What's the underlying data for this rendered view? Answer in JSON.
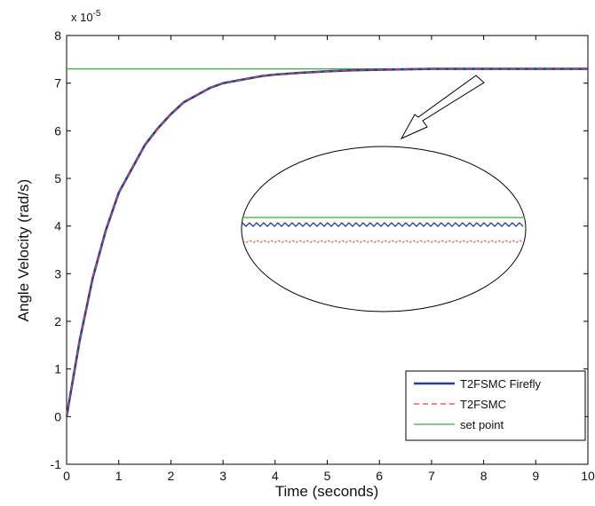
{
  "chart_data": {
    "type": "line",
    "xlabel": "Time (seconds)",
    "ylabel": "Angle Velocity (rad/s)",
    "y_multiplier": "x 10",
    "y_exponent": "-5",
    "xlim": [
      0,
      10
    ],
    "ylim": [
      -1,
      8
    ],
    "x_ticks": [
      "0",
      "1",
      "2",
      "3",
      "4",
      "5",
      "6",
      "7",
      "8",
      "9",
      "10"
    ],
    "y_ticks": [
      "-1",
      "0",
      "1",
      "2",
      "3",
      "4",
      "5",
      "6",
      "7",
      "8"
    ],
    "legend_position": "bottom-right",
    "series": [
      {
        "name": "T2FSMC Firefly",
        "color": "#1f3f9f",
        "style": "solid",
        "x": [
          0,
          0.25,
          0.5,
          0.75,
          1,
          1.25,
          1.5,
          1.75,
          2,
          2.25,
          2.5,
          2.75,
          3,
          3.25,
          3.5,
          3.75,
          4,
          4.5,
          5,
          5.5,
          6,
          6.5,
          7,
          7.5,
          8,
          8.5,
          9,
          9.5,
          10
        ],
        "values": [
          0,
          1.6,
          2.9,
          3.9,
          4.7,
          5.2,
          5.7,
          6.05,
          6.35,
          6.6,
          6.75,
          6.9,
          7.0,
          7.05,
          7.1,
          7.15,
          7.18,
          7.22,
          7.25,
          7.27,
          7.28,
          7.29,
          7.3,
          7.3,
          7.3,
          7.3,
          7.3,
          7.3,
          7.3
        ]
      },
      {
        "name": "T2FSMC",
        "color": "#e0403a",
        "style": "dashed",
        "x": [
          0,
          0.25,
          0.5,
          0.75,
          1,
          1.25,
          1.5,
          1.75,
          2,
          2.25,
          2.5,
          2.75,
          3,
          3.25,
          3.5,
          3.75,
          4,
          4.5,
          5,
          5.5,
          6,
          6.5,
          7,
          7.5,
          8,
          8.5,
          9,
          9.5,
          10
        ],
        "values": [
          0,
          1.6,
          2.9,
          3.9,
          4.7,
          5.2,
          5.7,
          6.05,
          6.35,
          6.6,
          6.75,
          6.9,
          7.0,
          7.05,
          7.1,
          7.15,
          7.18,
          7.22,
          7.25,
          7.27,
          7.28,
          7.29,
          7.3,
          7.3,
          7.3,
          7.3,
          7.3,
          7.3,
          7.3
        ]
      },
      {
        "name": "set point",
        "color": "#33b233",
        "style": "solid",
        "x": [
          0,
          10
        ],
        "values": [
          7.3,
          7.3
        ]
      }
    ]
  }
}
